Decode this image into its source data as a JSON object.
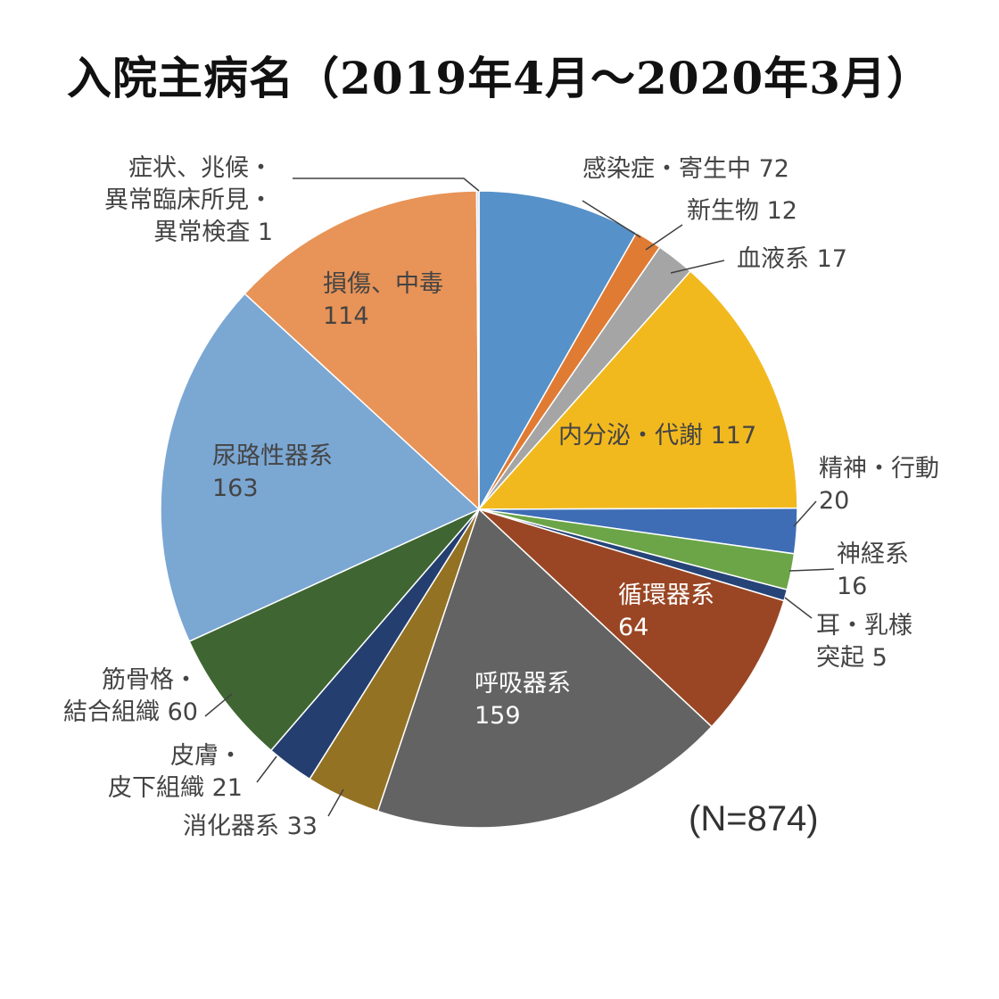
{
  "chart_data": {
    "type": "pie",
    "title": "入院主病名（2019年4月～2020年3月）",
    "note": "(N=874)",
    "slices": [
      {
        "label": "感染症・寄生中",
        "value": 72,
        "color": "#5691C9"
      },
      {
        "label": "新生物",
        "value": 12,
        "color": "#E07B34"
      },
      {
        "label": "血液系",
        "value": 17,
        "color": "#A5A5A5"
      },
      {
        "label": "内分泌・代謝",
        "value": 117,
        "color": "#F2B91E"
      },
      {
        "label": "精神・行動",
        "value": 20,
        "color": "#3E6DB5"
      },
      {
        "label": "神経系",
        "value": 16,
        "color": "#6BA547"
      },
      {
        "label": "耳・乳様突起",
        "value": 5,
        "color": "#264477"
      },
      {
        "label": "循環器系",
        "value": 64,
        "color": "#9A4624"
      },
      {
        "label": "呼吸器系",
        "value": 159,
        "color": "#636363"
      },
      {
        "label": "消化器系",
        "value": 33,
        "color": "#947224"
      },
      {
        "label": "皮膚・皮下組織",
        "value": 21,
        "color": "#243F6F"
      },
      {
        "label": "筋骨格・結合組織",
        "value": 60,
        "color": "#3F6632"
      },
      {
        "label": "尿路性器系",
        "value": 163,
        "color": "#7BA7D3"
      },
      {
        "label": "損傷、中毒",
        "value": 114,
        "color": "#E89357"
      },
      {
        "label": "症状、兆候・異常臨床所見・異常検査",
        "value": 1,
        "color": "#C5D9EE"
      }
    ],
    "labels": [
      {
        "lines": [
          "感染症・寄生中 72"
        ],
        "color": "#444444"
      },
      {
        "lines": [
          "新生物 12"
        ],
        "color": "#444444"
      },
      {
        "lines": [
          "血液系 17"
        ],
        "color": "#444444"
      },
      {
        "lines": [
          "内分泌・代謝 117"
        ],
        "color": "#444444"
      },
      {
        "lines": [
          "精神・行動",
          "20"
        ],
        "color": "#444444"
      },
      {
        "lines": [
          "神経系",
          "16"
        ],
        "color": "#444444"
      },
      {
        "lines": [
          "耳・乳様",
          "突起 5"
        ],
        "color": "#444444"
      },
      {
        "lines": [
          "循環器系",
          "64"
        ],
        "color": "#ffffff"
      },
      {
        "lines": [
          "呼吸器系",
          "159"
        ],
        "color": "#ffffff"
      },
      {
        "lines": [
          "消化器系 33"
        ],
        "color": "#444444"
      },
      {
        "lines": [
          "皮膚・",
          "皮下組織 21"
        ],
        "color": "#444444"
      },
      {
        "lines": [
          "筋骨格・",
          "結合組織 60"
        ],
        "color": "#444444"
      },
      {
        "lines": [
          "尿路性器系",
          "163"
        ],
        "color": "#444444"
      },
      {
        "lines": [
          "損傷、中毒",
          "114"
        ],
        "color": "#444444"
      },
      {
        "lines": [
          "症状、兆候・",
          "異常臨床所見・",
          "異常検査 1"
        ],
        "color": "#444444"
      }
    ]
  }
}
